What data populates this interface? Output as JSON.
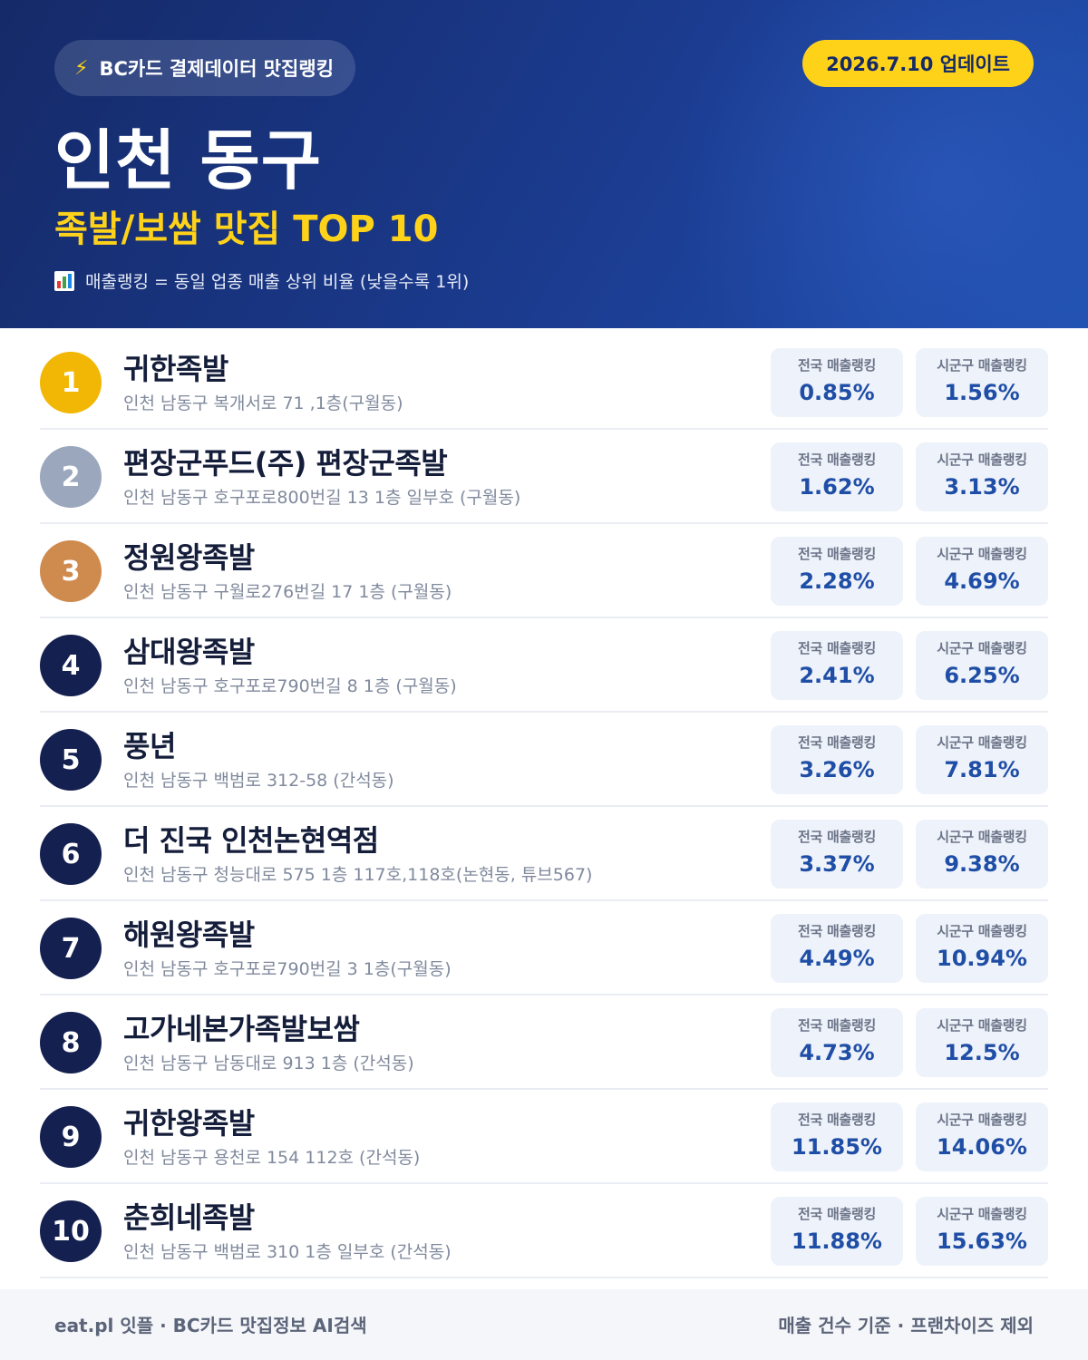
{
  "header": {
    "brand_icon": "lightning-bolt-icon",
    "brand_label": "BC카드 결제데이터 맛집랭킹",
    "update_label": "2026.7.10 업데이트",
    "title": "인천 동구",
    "subtitle": "족발/보쌈 맛집 TOP 10",
    "legend_icon": "bar-chart-icon",
    "legend_text": "매출랭킹 = 동일 업종 매출 상위 비율 (낮을수록 1위)"
  },
  "colors": {
    "header_bg": "#1b3b8f",
    "accent_yellow": "#ffd21a",
    "rank_gold": "#f2b705",
    "rank_silver": "#9ba7bd",
    "rank_bronze": "#cf8a4e",
    "rank_default": "#14204f",
    "value_blue": "#1f4ea6"
  },
  "stat_labels": {
    "national": "전국 매출랭킹",
    "local": "시군구 매출랭킹"
  },
  "restaurants": [
    {
      "rank": "1",
      "name": "귀한족발",
      "address": "인천 남동구 복개서로 71 ,1층(구월동)",
      "national": "0.85%",
      "local": "1.56%"
    },
    {
      "rank": "2",
      "name": "편장군푸드(주) 편장군족발",
      "address": "인천 남동구 호구포로800번길 13 1층 일부호 (구월동)",
      "national": "1.62%",
      "local": "3.13%"
    },
    {
      "rank": "3",
      "name": "정원왕족발",
      "address": "인천 남동구 구월로276번길 17 1층 (구월동)",
      "national": "2.28%",
      "local": "4.69%"
    },
    {
      "rank": "4",
      "name": "삼대왕족발",
      "address": "인천 남동구 호구포로790번길 8 1층 (구월동)",
      "national": "2.41%",
      "local": "6.25%"
    },
    {
      "rank": "5",
      "name": "풍년",
      "address": "인천 남동구 백범로 312-58 (간석동)",
      "national": "3.26%",
      "local": "7.81%"
    },
    {
      "rank": "6",
      "name": "더 진국 인천논현역점",
      "address": "인천 남동구 청능대로 575 1층 117호,118호(논현동, 튜브567)",
      "national": "3.37%",
      "local": "9.38%"
    },
    {
      "rank": "7",
      "name": "해원왕족발",
      "address": "인천 남동구 호구포로790번길 3 1층(구월동)",
      "national": "4.49%",
      "local": "10.94%"
    },
    {
      "rank": "8",
      "name": "고가네본가족발보쌈",
      "address": "인천 남동구 남동대로 913 1층 (간석동)",
      "national": "4.73%",
      "local": "12.5%"
    },
    {
      "rank": "9",
      "name": "귀한왕족발",
      "address": "인천 남동구 용천로 154 112호 (간석동)",
      "national": "11.85%",
      "local": "14.06%"
    },
    {
      "rank": "10",
      "name": "춘희네족발",
      "address": "인천 남동구 백범로 310 1층 일부호 (간석동)",
      "national": "11.88%",
      "local": "15.63%"
    }
  ],
  "footer": {
    "left": "eat.pl 잇플 · BC카드 맛집정보 AI검색",
    "right": "매출 건수 기준 · 프랜차이즈 제외"
  }
}
